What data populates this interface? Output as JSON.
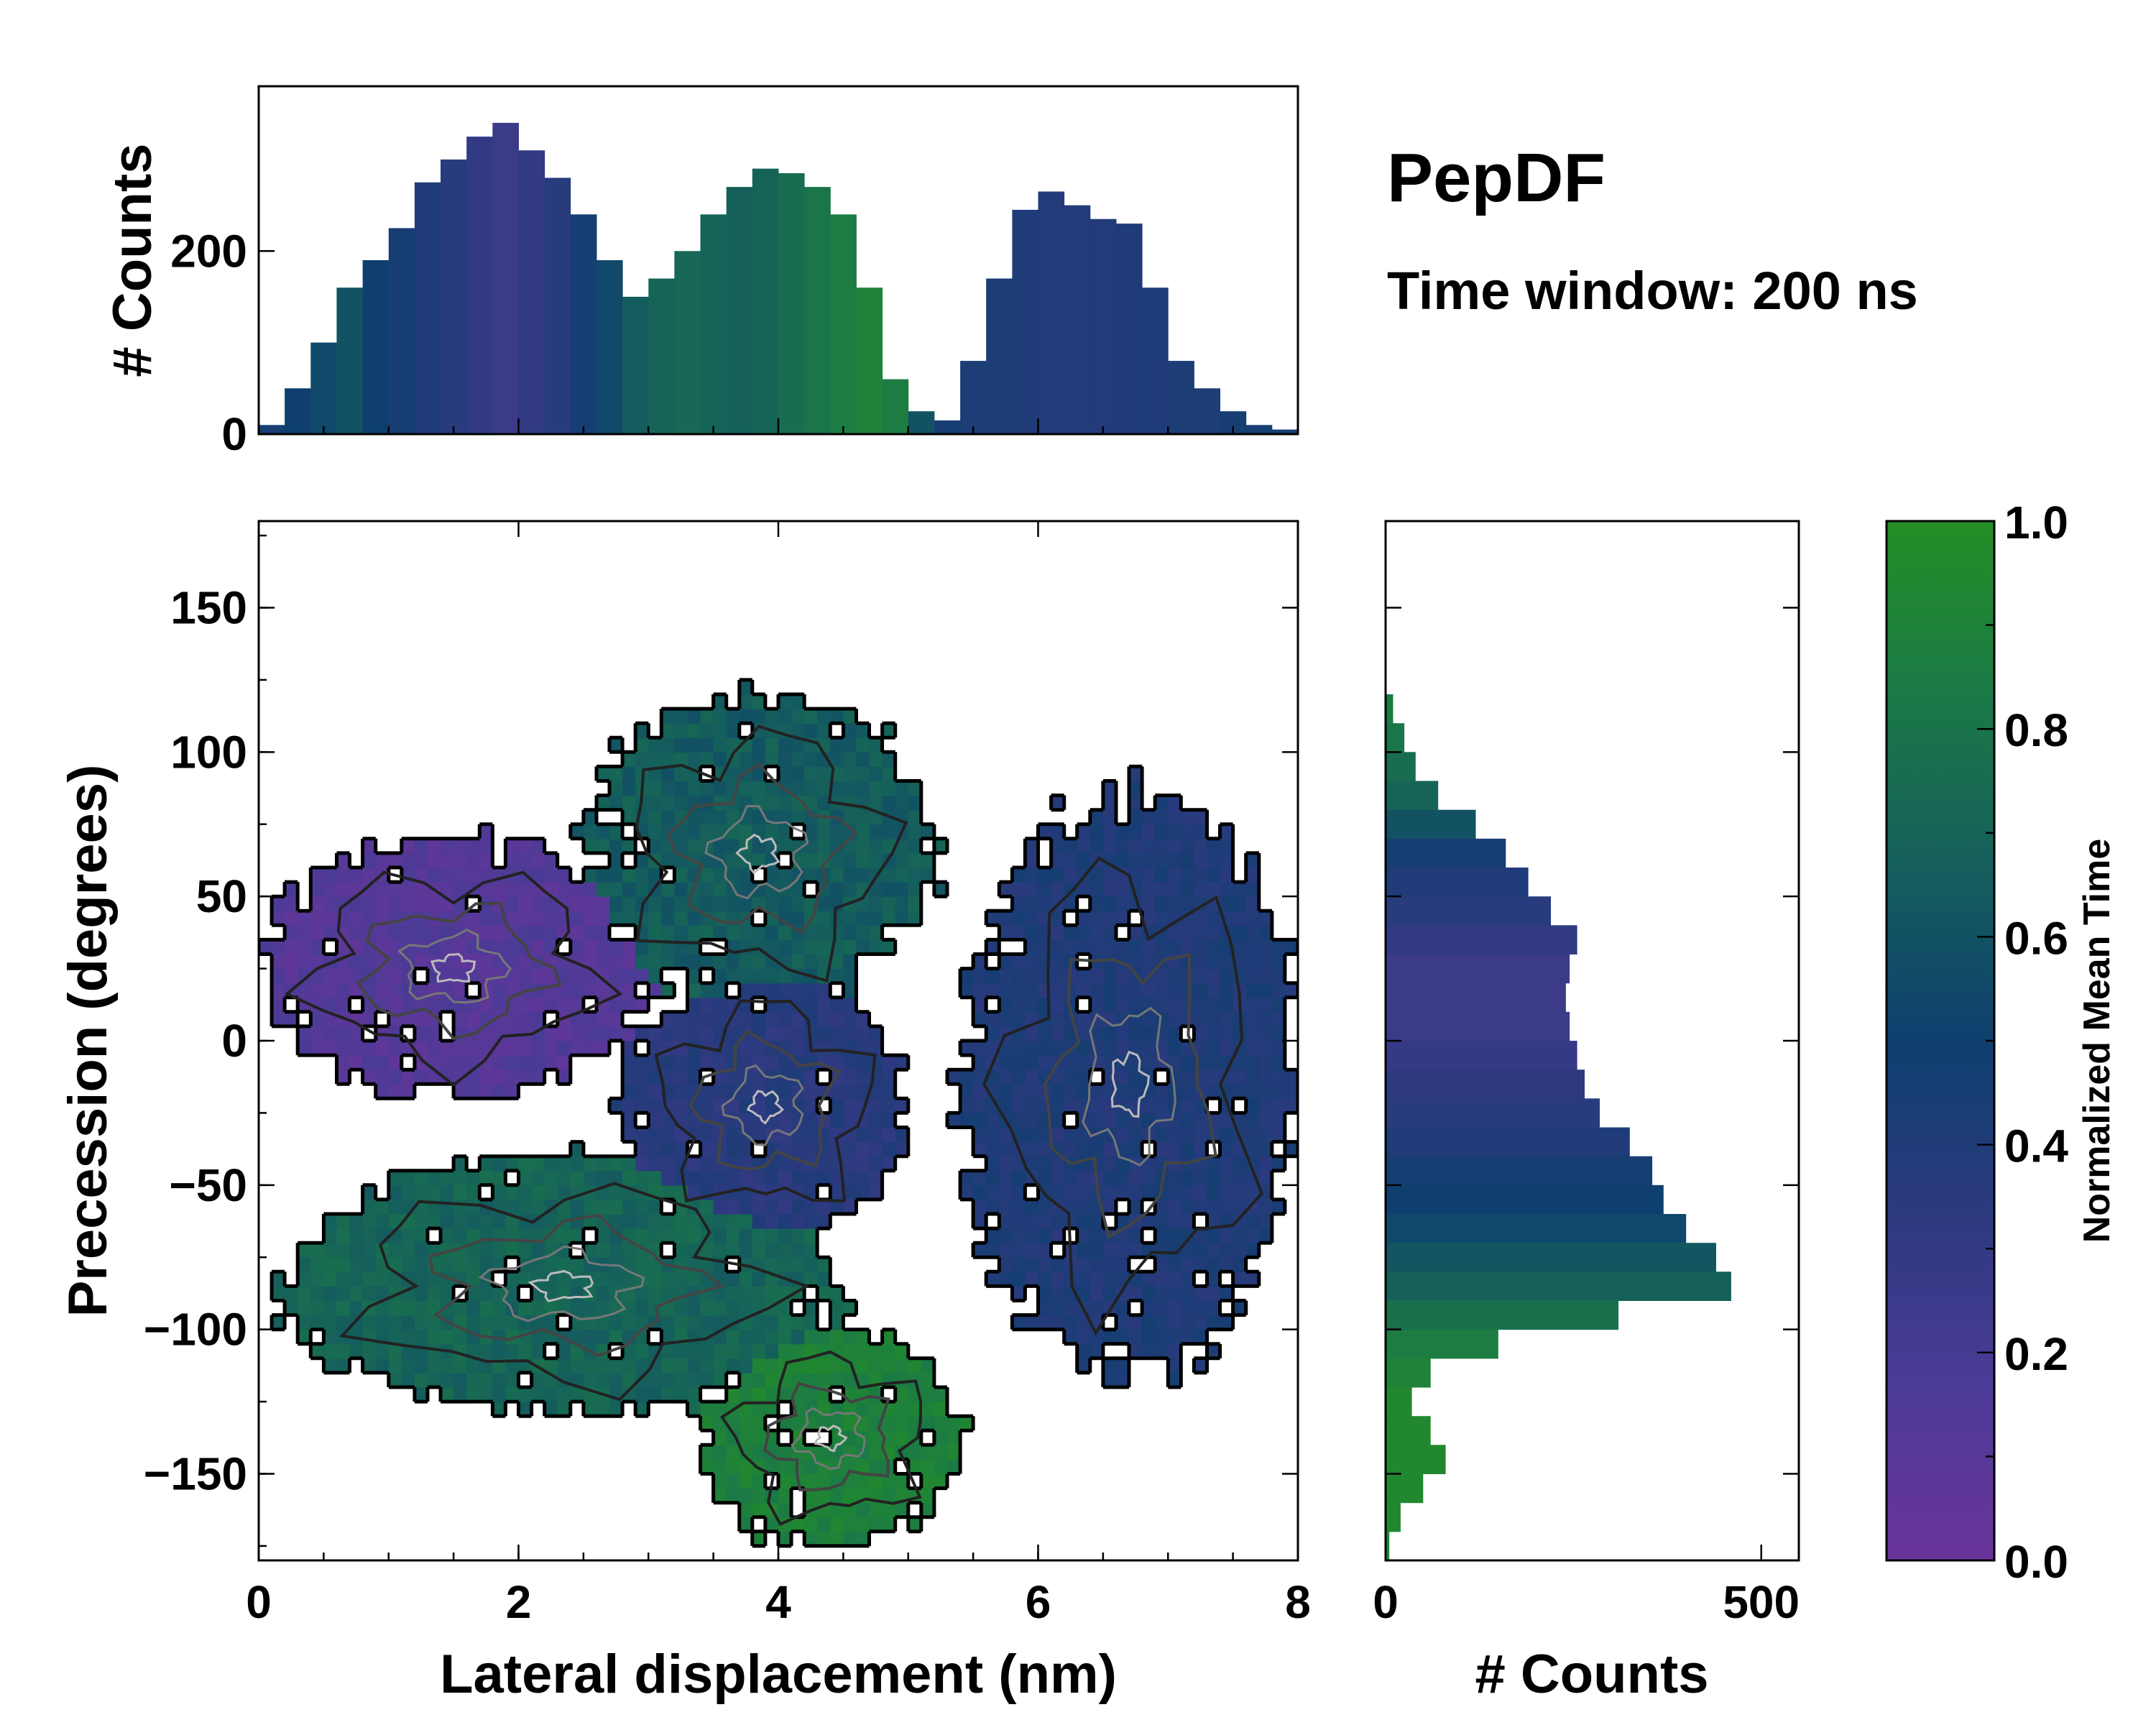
{
  "title": "PepDF",
  "subtitle": "Time window: 200 ns",
  "chart_data": [
    {
      "id": "main-2d-histogram",
      "type": "heatmap",
      "xlabel": "Lateral displacement (nm)",
      "ylabel": "Precession (degrees)",
      "xlim": [
        0,
        8
      ],
      "ylim": [
        -180,
        180
      ],
      "x_ticks": [
        0,
        2,
        4,
        6,
        8
      ],
      "x_tick_labels": [
        "0",
        "2",
        "4",
        "6",
        "8"
      ],
      "y_ticks": [
        150,
        100,
        50,
        0,
        -50,
        -100,
        -150
      ],
      "y_tick_labels": [
        "150",
        "100",
        "50",
        "0",
        "−50",
        "−100",
        "−150"
      ],
      "color_encoding": "Normalized Mean Time",
      "contours": true,
      "regions": [
        {
          "name": "upper-left lobe",
          "x": [
            0,
            3.0
          ],
          "y": [
            -20,
            70
          ],
          "mean_time": 0.12
        },
        {
          "name": "lower-left lobe",
          "x": [
            0.2,
            4.5
          ],
          "y": [
            -130,
            -40
          ],
          "mean_time": 0.7
        },
        {
          "name": "top-center lobe",
          "x": [
            2.5,
            5.2
          ],
          "y": [
            10,
            120
          ],
          "mean_time": 0.65
        },
        {
          "name": "center",
          "x": [
            2.8,
            5.0
          ],
          "y": [
            -70,
            25
          ],
          "mean_time": 0.35
        },
        {
          "name": "bottom-center lobe",
          "x": [
            3.4,
            5.4
          ],
          "y": [
            -175,
            -100
          ],
          "mean_time": 0.88
        },
        {
          "name": "right lobe",
          "x": [
            5.4,
            8.0
          ],
          "y": [
            -115,
            85
          ],
          "mean_time": 0.4
        }
      ]
    },
    {
      "id": "top-marginal-histogram",
      "type": "bar",
      "ylabel": "# Counts",
      "xlim": [
        0,
        8
      ],
      "ylim": [
        0,
        380
      ],
      "y_ticks": [
        0,
        200
      ],
      "y_tick_labels": [
        "0",
        "200"
      ],
      "x": [
        0.1,
        0.3,
        0.5,
        0.7,
        0.9,
        1.1,
        1.3,
        1.5,
        1.7,
        1.9,
        2.1,
        2.3,
        2.5,
        2.7,
        2.9,
        3.1,
        3.3,
        3.5,
        3.7,
        3.9,
        4.1,
        4.3,
        4.5,
        4.7,
        4.9,
        5.1,
        5.3,
        5.5,
        5.7,
        5.9,
        6.1,
        6.3,
        6.5,
        6.7,
        6.9,
        7.1,
        7.3,
        7.5,
        7.7,
        7.9
      ],
      "values": [
        10,
        50,
        100,
        160,
        190,
        225,
        275,
        300,
        325,
        340,
        310,
        280,
        240,
        190,
        150,
        170,
        200,
        240,
        270,
        290,
        285,
        270,
        240,
        160,
        60,
        25,
        15,
        80,
        170,
        245,
        265,
        250,
        235,
        230,
        160,
        80,
        50,
        25,
        10,
        5
      ],
      "mean_time": [
        0.45,
        0.5,
        0.55,
        0.6,
        0.5,
        0.45,
        0.4,
        0.35,
        0.3,
        0.25,
        0.3,
        0.35,
        0.45,
        0.55,
        0.65,
        0.7,
        0.72,
        0.7,
        0.68,
        0.7,
        0.75,
        0.8,
        0.85,
        0.9,
        0.85,
        0.6,
        0.45,
        0.42,
        0.42,
        0.4,
        0.38,
        0.38,
        0.38,
        0.4,
        0.4,
        0.42,
        0.42,
        0.45,
        0.45,
        0.45
      ]
    },
    {
      "id": "right-marginal-histogram",
      "type": "bar",
      "orientation": "horizontal",
      "xlabel": "# Counts",
      "xlim": [
        0,
        550
      ],
      "ylim": [
        -180,
        180
      ],
      "x_ticks": [
        0,
        500
      ],
      "x_tick_labels": [
        "0",
        "500"
      ],
      "y": [
        115,
        105,
        95,
        85,
        75,
        65,
        55,
        45,
        35,
        25,
        15,
        5,
        -5,
        -15,
        -25,
        -35,
        -45,
        -55,
        -65,
        -75,
        -85,
        -95,
        -105,
        -115,
        -125,
        -135,
        -145,
        -155,
        -165,
        -175
      ],
      "values": [
        10,
        25,
        40,
        70,
        120,
        160,
        190,
        220,
        255,
        245,
        240,
        245,
        255,
        265,
        285,
        325,
        355,
        370,
        400,
        440,
        460,
        310,
        150,
        60,
        35,
        60,
        80,
        50,
        20,
        5
      ],
      "mean_time": [
        0.85,
        0.8,
        0.75,
        0.7,
        0.6,
        0.45,
        0.4,
        0.35,
        0.3,
        0.25,
        0.25,
        0.25,
        0.28,
        0.32,
        0.35,
        0.4,
        0.45,
        0.5,
        0.55,
        0.62,
        0.68,
        0.78,
        0.85,
        0.9,
        0.95,
        0.95,
        0.95,
        0.95,
        0.95,
        0.95
      ]
    },
    {
      "id": "colorbar",
      "type": "colorbar",
      "label": "Normalized Mean Time",
      "range": [
        0,
        1
      ],
      "ticks": [
        1.0,
        0.8,
        0.6,
        0.4,
        0.2,
        0.0
      ],
      "tick_labels": [
        "1.0",
        "0.8",
        "0.6",
        "0.4",
        "0.2",
        "0.0"
      ],
      "colors": [
        "#6a349a",
        "#4b3b96",
        "#2b3a7e",
        "#0e3f6e",
        "#155f5c",
        "#1b7a45",
        "#248e25"
      ]
    }
  ]
}
